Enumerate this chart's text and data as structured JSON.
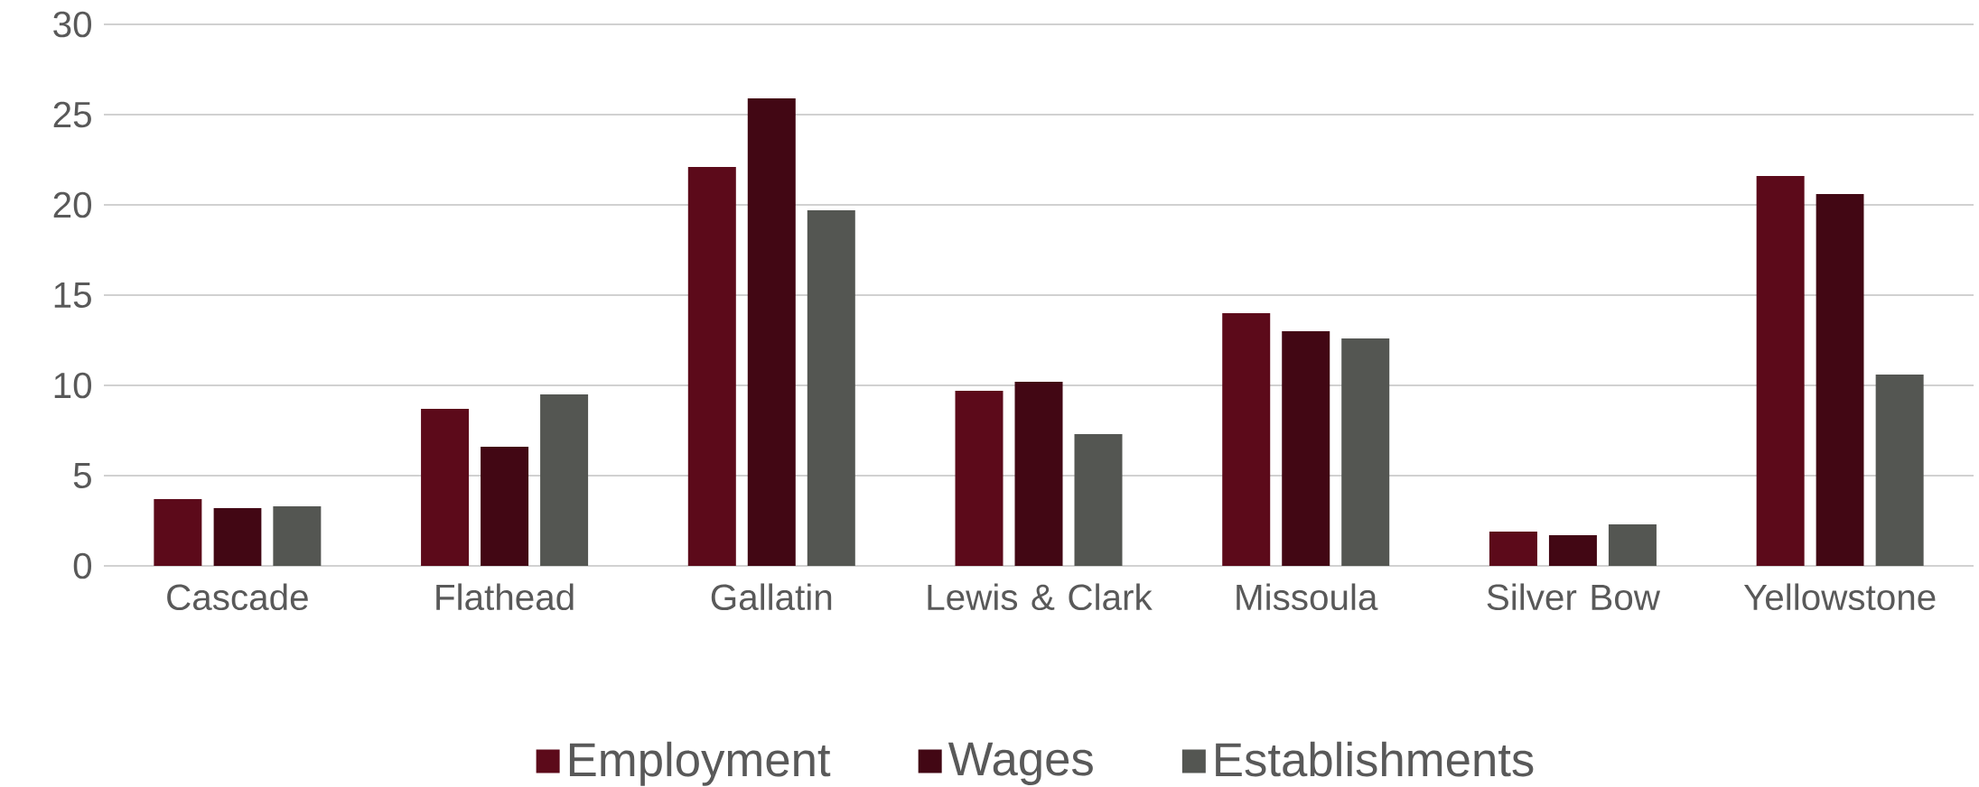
{
  "chart_data": {
    "type": "bar",
    "categories": [
      "Cascade",
      "Flathead",
      "Gallatin",
      "Lewis & Clark",
      "Missoula",
      "Silver Bow",
      "Yellowstone"
    ],
    "series": [
      {
        "name": "Employment",
        "color": "#5c0a1a",
        "values": [
          3.7,
          8.7,
          22.1,
          9.7,
          14.0,
          1.9,
          21.6
        ]
      },
      {
        "name": "Wages",
        "color": "#420714",
        "values": [
          3.2,
          6.6,
          25.9,
          10.2,
          13.0,
          1.7,
          20.6
        ]
      },
      {
        "name": "Establishments",
        "color": "#545652",
        "values": [
          3.3,
          9.5,
          19.7,
          7.3,
          12.6,
          2.3,
          10.6
        ]
      }
    ],
    "ylim": [
      0,
      30
    ],
    "yticks": [
      0,
      5,
      10,
      15,
      20,
      25,
      30
    ],
    "grid": "y",
    "legend": "bottom"
  }
}
